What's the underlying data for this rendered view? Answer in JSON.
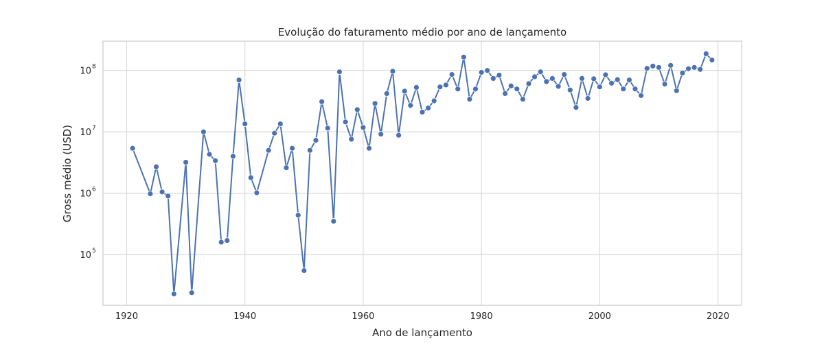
{
  "chart_data": {
    "type": "line",
    "title": "Evolução do faturamento médio por ano de lançamento",
    "xlabel": "Ano de lançamento",
    "ylabel": "Gross médio (USD)",
    "xlim": [
      1916,
      2024
    ],
    "ylim": [
      15000,
      300000000
    ],
    "yscale": "log",
    "grid": true,
    "x_ticks": [
      1920,
      1940,
      1960,
      1980,
      2000,
      2020
    ],
    "y_ticks": [
      {
        "value": 100000,
        "base": "10",
        "exp": "5"
      },
      {
        "value": 1000000,
        "base": "10",
        "exp": "6"
      },
      {
        "value": 10000000,
        "base": "10",
        "exp": "7"
      },
      {
        "value": 100000000,
        "base": "10",
        "exp": "8"
      }
    ],
    "colors": {
      "line": "#4c72b0",
      "grid": "#d9d9d9",
      "spine": "#cccccc"
    },
    "series": [
      {
        "x": [
          1921,
          1924,
          1925,
          1926,
          1927,
          1928,
          1930,
          1931,
          1933,
          1934,
          1935,
          1936,
          1937,
          1938,
          1939,
          1940,
          1941,
          1942,
          1944,
          1945,
          1946,
          1947,
          1948,
          1949,
          1950,
          1951,
          1952,
          1953,
          1954,
          1955,
          1956,
          1957,
          1958,
          1959,
          1960,
          1961,
          1962,
          1963,
          1964,
          1965,
          1966,
          1967,
          1968,
          1969,
          1970,
          1971,
          1972,
          1973,
          1974,
          1975,
          1976,
          1977,
          1978,
          1979,
          1980,
          1981,
          1982,
          1983,
          1984,
          1985,
          1986,
          1987,
          1988,
          1989,
          1990,
          1991,
          1992,
          1993,
          1994,
          1995,
          1996,
          1997,
          1998,
          1999,
          2000,
          2001,
          2002,
          2003,
          2004,
          2005,
          2006,
          2007,
          2008,
          2009,
          2010,
          2011,
          2012,
          2013,
          2014,
          2015,
          2016,
          2017,
          2018,
          2019
        ],
        "values": [
          5400000,
          980000,
          2700000,
          1050000,
          900000,
          23000,
          3200000,
          24000,
          10000000,
          4300000,
          3400000,
          160000,
          170000,
          4000000,
          70000000,
          13500000,
          1800000,
          1020000,
          5000000,
          9500000,
          13500000,
          2600000,
          5400000,
          440000,
          55000,
          5000000,
          7300000,
          31000000,
          11500000,
          350000,
          95000000,
          14500000,
          7600000,
          23000000,
          11800000,
          5400000,
          29000000,
          9200000,
          42000000,
          97000000,
          8800000,
          46000000,
          27000000,
          53000000,
          21000000,
          24500000,
          32000000,
          54000000,
          58000000,
          86000000,
          50000000,
          165000000,
          34000000,
          50000000,
          93000000,
          100000000,
          74000000,
          84000000,
          42000000,
          56000000,
          50000000,
          34000000,
          61000000,
          79000000,
          95000000,
          66000000,
          74000000,
          55000000,
          86000000,
          48000000,
          25000000,
          74000000,
          35000000,
          73000000,
          54000000,
          85000000,
          62000000,
          71000000,
          50000000,
          70000000,
          50000000,
          39000000,
          108000000,
          118000000,
          112000000,
          60000000,
          121000000,
          47000000,
          91000000,
          107000000,
          112000000,
          104000000,
          187000000,
          148000000
        ]
      }
    ]
  }
}
